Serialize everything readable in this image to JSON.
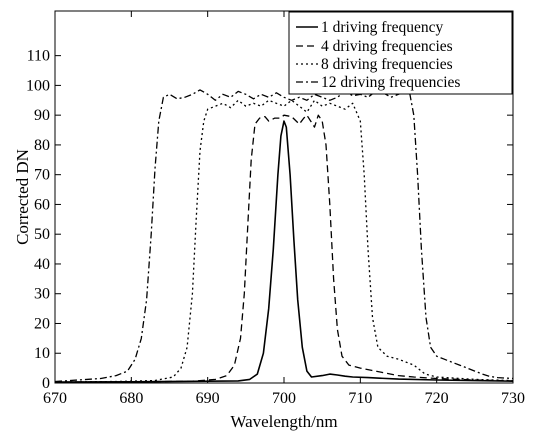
{
  "chart_data": {
    "type": "line",
    "xlabel": "Wavelength/nm",
    "ylabel": "Corrected DN",
    "xlim": [
      670,
      730
    ],
    "ylim": [
      0,
      125
    ],
    "xticks": [
      "670",
      "680",
      "690",
      "700",
      "710",
      "720",
      "730"
    ],
    "yticks": [
      "0",
      "10",
      "20",
      "30",
      "40",
      "50",
      "60",
      "70",
      "80",
      "90",
      "100",
      "110"
    ],
    "legend": {
      "position": "top-right"
    },
    "series": [
      {
        "name": "1 driving frequency",
        "style": "solid",
        "points": [
          [
            670,
            0.3
          ],
          [
            680,
            0.4
          ],
          [
            690,
            0.6
          ],
          [
            694,
            0.7
          ],
          [
            695.5,
            1.2
          ],
          [
            696.5,
            3
          ],
          [
            697.3,
            10
          ],
          [
            698,
            25
          ],
          [
            698.6,
            45
          ],
          [
            699.2,
            70
          ],
          [
            699.6,
            83
          ],
          [
            700,
            88
          ],
          [
            700.3,
            86
          ],
          [
            700.8,
            70
          ],
          [
            701.3,
            48
          ],
          [
            701.8,
            28
          ],
          [
            702.4,
            12
          ],
          [
            703,
            4
          ],
          [
            703.6,
            2
          ],
          [
            705,
            2.5
          ],
          [
            706,
            3
          ],
          [
            707,
            2.7
          ],
          [
            708,
            2.3
          ],
          [
            709,
            2
          ],
          [
            711,
            1.8
          ],
          [
            715,
            1.3
          ],
          [
            720,
            1
          ],
          [
            725,
            0.8
          ],
          [
            730,
            0.6
          ]
        ]
      },
      {
        "name": "4 driving frequencies",
        "style": "dashed",
        "points": [
          [
            670,
            0.3
          ],
          [
            680,
            0.4
          ],
          [
            688,
            0.6
          ],
          [
            691,
            1.2
          ],
          [
            692.5,
            2.5
          ],
          [
            693.5,
            6
          ],
          [
            694.3,
            15
          ],
          [
            694.8,
            30
          ],
          [
            695.3,
            55
          ],
          [
            695.7,
            75
          ],
          [
            696.2,
            87
          ],
          [
            696.8,
            89
          ],
          [
            697.5,
            89.5
          ],
          [
            698,
            88
          ],
          [
            698.8,
            89
          ],
          [
            699.5,
            89
          ],
          [
            700,
            90
          ],
          [
            701,
            89.5
          ],
          [
            702,
            87
          ],
          [
            702.6,
            89
          ],
          [
            703,
            90
          ],
          [
            703.5,
            88
          ],
          [
            704,
            86
          ],
          [
            704.5,
            90
          ],
          [
            705,
            88
          ],
          [
            705.5,
            80
          ],
          [
            706,
            60
          ],
          [
            706.5,
            35
          ],
          [
            707,
            18
          ],
          [
            707.6,
            9
          ],
          [
            708.5,
            6
          ],
          [
            710,
            5
          ],
          [
            712,
            4
          ],
          [
            713,
            3.5
          ],
          [
            715,
            2.5
          ],
          [
            717,
            2
          ],
          [
            720,
            1.5
          ],
          [
            725,
            1
          ],
          [
            730,
            0.7
          ]
        ]
      },
      {
        "name": "8 driving frequencies",
        "style": "dotted",
        "points": [
          [
            670,
            0.3
          ],
          [
            678,
            0.5
          ],
          [
            683,
            0.8
          ],
          [
            685.5,
            2
          ],
          [
            686.5,
            5
          ],
          [
            687.3,
            12
          ],
          [
            688,
            30
          ],
          [
            688.5,
            55
          ],
          [
            689,
            78
          ],
          [
            689.5,
            88
          ],
          [
            690,
            92
          ],
          [
            691,
            93
          ],
          [
            692,
            94
          ],
          [
            693,
            92.5
          ],
          [
            694,
            95
          ],
          [
            695,
            93
          ],
          [
            696,
            94
          ],
          [
            697,
            93
          ],
          [
            698,
            95
          ],
          [
            699,
            94
          ],
          [
            700,
            93
          ],
          [
            701,
            95
          ],
          [
            702,
            93
          ],
          [
            703,
            91
          ],
          [
            704,
            95
          ],
          [
            705,
            93
          ],
          [
            706,
            94
          ],
          [
            707,
            93
          ],
          [
            708,
            92
          ],
          [
            709,
            94
          ],
          [
            710,
            88
          ],
          [
            710.5,
            70
          ],
          [
            711,
            45
          ],
          [
            711.6,
            22
          ],
          [
            712.3,
            12
          ],
          [
            713.5,
            9
          ],
          [
            715,
            8
          ],
          [
            717,
            6
          ],
          [
            718.5,
            3
          ],
          [
            720,
            2
          ],
          [
            725,
            1.2
          ],
          [
            730,
            0.8
          ]
        ]
      },
      {
        "name": "12 driving frequencies",
        "style": "dashdot",
        "points": [
          [
            670,
            0.5
          ],
          [
            673,
            1
          ],
          [
            676,
            1.5
          ],
          [
            678,
            2.5
          ],
          [
            679.5,
            4
          ],
          [
            680.5,
            8
          ],
          [
            681.3,
            15
          ],
          [
            682,
            28
          ],
          [
            682.6,
            50
          ],
          [
            683.1,
            72
          ],
          [
            683.6,
            88
          ],
          [
            684.2,
            96
          ],
          [
            685,
            97
          ],
          [
            686,
            95.5
          ],
          [
            687,
            96
          ],
          [
            688,
            97
          ],
          [
            689,
            98.5
          ],
          [
            690,
            97
          ],
          [
            691,
            95
          ],
          [
            692,
            97
          ],
          [
            693,
            96
          ],
          [
            694,
            98
          ],
          [
            695,
            97
          ],
          [
            696,
            95.5
          ],
          [
            697,
            97
          ],
          [
            698,
            96
          ],
          [
            699,
            97.5
          ],
          [
            700,
            96
          ],
          [
            701,
            95
          ],
          [
            702,
            96
          ],
          [
            703,
            95
          ],
          [
            704,
            97
          ],
          [
            705,
            96
          ],
          [
            706,
            95
          ],
          [
            707,
            96
          ],
          [
            708,
            98
          ],
          [
            709,
            96.5
          ],
          [
            710,
            97
          ],
          [
            711,
            96
          ],
          [
            712,
            98
          ],
          [
            713,
            97.5
          ],
          [
            714,
            96
          ],
          [
            715,
            97
          ],
          [
            716,
            98
          ],
          [
            716.5,
            97
          ],
          [
            717,
            90
          ],
          [
            717.5,
            70
          ],
          [
            718,
            45
          ],
          [
            718.6,
            22
          ],
          [
            719.2,
            12
          ],
          [
            720,
            9
          ],
          [
            721,
            8
          ],
          [
            722,
            7
          ],
          [
            723,
            6
          ],
          [
            724,
            5
          ],
          [
            725,
            4
          ],
          [
            726,
            3
          ],
          [
            727,
            2.2
          ],
          [
            728,
            1.8
          ],
          [
            730,
            1.5
          ]
        ]
      }
    ]
  }
}
